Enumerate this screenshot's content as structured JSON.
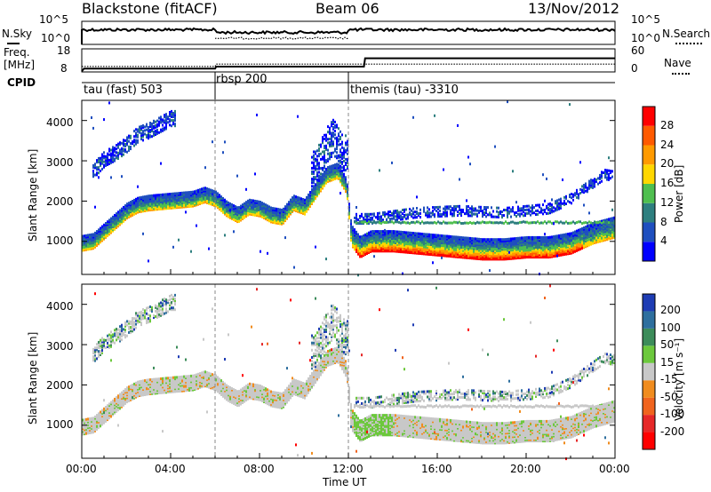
{
  "header": {
    "station": "Blackstone (fitACF)",
    "beam": "Beam 06",
    "date": "13/Nov/2012"
  },
  "top_panels": {
    "nsky_label": "N.Sky",
    "nsky_ticks": [
      "10^5",
      "10^0"
    ],
    "nsearch_label": "N.Search",
    "nsearch_ticks": [
      "10^5",
      "10^0"
    ],
    "freq_label": "Freq.",
    "freq_unit": "[MHz]",
    "freq_ticks": [
      "18",
      "8"
    ],
    "nave_label": "Nave",
    "nave_ticks": [
      "60",
      "0"
    ],
    "cpid_label": "CPID",
    "cpid_segments": [
      {
        "label": "tau (fast) 503",
        "start_hour": 0,
        "end_hour": 6
      },
      {
        "label": "rbsp 200",
        "start_hour": 6,
        "end_hour": 12
      },
      {
        "label": "themis (tau) -3310",
        "start_hour": 12,
        "end_hour": 24
      }
    ]
  },
  "axes": {
    "ylabel": "Slant Range [km]",
    "y_ticks": [
      "1000",
      "2000",
      "3000",
      "4000"
    ],
    "x_ticks": [
      "00:00",
      "04:00",
      "08:00",
      "12:00",
      "16:00",
      "20:00",
      "00:00"
    ],
    "xlabel": "Time UT"
  },
  "colorbars": {
    "power": {
      "label": "Power [dB]",
      "ticks": [
        "4",
        "8",
        "12",
        "16",
        "20",
        "24",
        "28"
      ],
      "colors": [
        "#0000ff",
        "#1f4fbf",
        "#2e7f7f",
        "#4fbf4f",
        "#ffd700",
        "#ff9a00",
        "#ff5a00",
        "#ff0000"
      ]
    },
    "velocity": {
      "label": "Velocity [m s⁻¹]",
      "ticks": [
        "200",
        "100",
        "50",
        "15",
        "-15",
        "-50",
        "-100",
        "-200"
      ],
      "colors": [
        "#1e3cb4",
        "#2e6f9e",
        "#3c8c5a",
        "#6cc83c",
        "#c8c8c8",
        "#f08c1e",
        "#f0641e",
        "#e62828",
        "#ff0000"
      ]
    }
  },
  "chart_data": {
    "type": "heatmap",
    "title": "Blackstone (fitACF) Beam 06 13/Nov/2012",
    "xlabel": "Time UT",
    "ylabel": "Slant Range [km]",
    "x_range_hours": [
      0,
      24
    ],
    "y_range_km": [
      180,
      4500
    ],
    "panels": [
      "Power [dB]",
      "Velocity [m s-1]"
    ],
    "main_band_center_km": [
      [
        0.0,
        1000
      ],
      [
        0.5,
        1050
      ],
      [
        1.0,
        1300
      ],
      [
        1.5,
        1550
      ],
      [
        2.0,
        1800
      ],
      [
        2.5,
        1950
      ],
      [
        3.0,
        2000
      ],
      [
        4.0,
        2050
      ],
      [
        5.0,
        2100
      ],
      [
        5.5,
        2200
      ],
      [
        6.0,
        2100
      ],
      [
        6.5,
        1850
      ],
      [
        7.0,
        1700
      ],
      [
        7.5,
        1900
      ],
      [
        8.0,
        1850
      ],
      [
        8.5,
        1700
      ],
      [
        9.0,
        1650
      ],
      [
        9.5,
        2000
      ],
      [
        10.0,
        1900
      ],
      [
        10.5,
        2300
      ],
      [
        11.0,
        2700
      ],
      [
        11.5,
        2800
      ],
      [
        11.9,
        2400
      ],
      [
        12.1,
        1200
      ],
      [
        12.5,
        900
      ],
      [
        13.0,
        1050
      ],
      [
        14.0,
        1050
      ],
      [
        15.0,
        1000
      ],
      [
        16.0,
        950
      ],
      [
        17.0,
        900
      ],
      [
        18.0,
        850
      ],
      [
        19.0,
        850
      ],
      [
        20.0,
        900
      ],
      [
        21.0,
        900
      ],
      [
        22.0,
        1000
      ],
      [
        23.0,
        1250
      ],
      [
        24.0,
        1400
      ]
    ],
    "upper_band_center_km": [
      [
        0.5,
        2800
      ],
      [
        1.0,
        3100
      ],
      [
        1.5,
        3250
      ],
      [
        2.0,
        3450
      ],
      [
        2.5,
        3700
      ],
      [
        3.0,
        3800
      ],
      [
        3.5,
        3950
      ],
      [
        4.0,
        4100
      ]
    ],
    "pre_midnight_spike_km": [
      [
        10.5,
        2900
      ],
      [
        11.0,
        3500
      ],
      [
        11.3,
        3700
      ],
      [
        11.7,
        3300
      ]
    ],
    "late_band_center_km": [
      [
        13.0,
        1600
      ],
      [
        15.0,
        1750
      ],
      [
        17.0,
        1800
      ],
      [
        19.0,
        1750
      ],
      [
        21.0,
        1850
      ],
      [
        22.0,
        2100
      ],
      [
        23.0,
        2500
      ],
      [
        23.5,
        2700
      ],
      [
        24.0,
        2650
      ]
    ],
    "freq_mhz": [
      [
        0,
        8.4
      ],
      [
        0.1,
        9.9
      ],
      [
        6,
        9.9
      ],
      [
        6.05,
        11.0
      ],
      [
        12.7,
        11.0
      ],
      [
        12.75,
        15.7
      ],
      [
        24,
        15.7
      ]
    ],
    "nave": [
      [
        0,
        17
      ],
      [
        6,
        17
      ],
      [
        6.05,
        24
      ],
      [
        24,
        24
      ]
    ]
  }
}
